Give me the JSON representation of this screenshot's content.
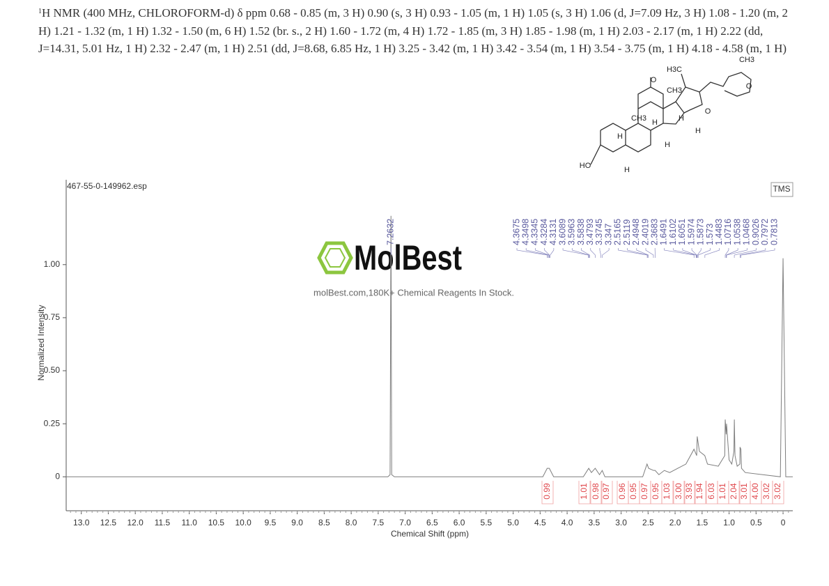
{
  "header": {
    "isotope": "1",
    "text": "H NMR (400 MHz, CHLOROFORM-d) δ ppm 0.68 - 0.85 (m, 3 H) 0.90 (s, 3 H) 0.93 - 1.05 (m, 1 H) 1.05 (s, 3 H) 1.06 (d, J=7.09 Hz, 3 H) 1.08 - 1.20 (m, 2 H) 1.21 - 1.32 (m, 1 H) 1.32 - 1.50 (m, 6 H) 1.52 (br. s., 2 H) 1.60 - 1.72 (m, 4 H) 1.72 - 1.85 (m, 3 H) 1.85 - 1.98 (m, 1 H) 2.03 - 2.17 (m, 1 H) 2.22 (dd, J=14.31, 5.01 Hz, 1 H) 2.32 - 2.47 (m, 1 H) 2.51 (dd, J=8.68, 6.85 Hz, 1 H) 3.25 - 3.42 (m, 1 H) 3.42 - 3.54 (m, 1 H) 3.54 - 3.75 (m, 1 H) 4.18 - 4.58 (m, 1 H)"
  },
  "structure": {
    "labels": [
      "H3C",
      "CH3",
      "O",
      "O",
      "CH3",
      "CH3",
      "H",
      "H",
      "O",
      "H",
      "H",
      "H",
      "HO",
      "H"
    ]
  },
  "watermark": {
    "brand": "MolBest",
    "tagline": "molBest.com,180K+ Chemical Reagents In Stock."
  },
  "chart_data": {
    "type": "line",
    "file_name": "467-55-0-149962.esp",
    "reference_label": "TMS",
    "x_label": "Chemical Shift (ppm)",
    "y_label": "Normalized Intensity",
    "color": "#7d7d7d",
    "x": [
      13.28,
      7.32,
      7.28,
      7.2632,
      7.25,
      7.2,
      4.45,
      4.37,
      4.33,
      4.25,
      3.7,
      3.6,
      3.55,
      3.48,
      3.4,
      3.35,
      3.3,
      2.6,
      2.52,
      2.49,
      2.4,
      2.37,
      2.3,
      2.2,
      2.1,
      1.95,
      1.8,
      1.65,
      1.6,
      1.59,
      1.55,
      1.45,
      1.4,
      1.2,
      1.08,
      1.0716,
      1.0538,
      1.0468,
      1.0,
      0.95,
      0.91,
      0.9026,
      0.89,
      0.85,
      0.8,
      0.7972,
      0.7813,
      0.77,
      0.7,
      0.05,
      0.0,
      -0.05,
      -0.18
    ],
    "values": [
      0,
      0,
      0.01,
      1.23,
      0.01,
      0,
      0,
      0.04,
      0.04,
      0,
      0,
      0.04,
      0.02,
      0.04,
      0.01,
      0.03,
      0,
      0,
      0.06,
      0.04,
      0.03,
      0.03,
      0.01,
      0.03,
      0.02,
      0.04,
      0.06,
      0.13,
      0.1,
      0.19,
      0.12,
      0.1,
      0.06,
      0.05,
      0.1,
      0.27,
      0.2,
      0.25,
      0.08,
      0.06,
      0.12,
      0.27,
      0.1,
      0.05,
      0.06,
      0.14,
      0.13,
      0.04,
      0.02,
      0,
      1.03,
      0,
      0
    ],
    "xlim": [
      13.28,
      -0.18
    ],
    "ylim": [
      -0.16,
      1.4
    ],
    "xticks": [
      {
        "value": 13,
        "label": "13.0"
      },
      12.5,
      {
        "value": 12,
        "label": "12.0"
      },
      11.5,
      {
        "value": 11,
        "label": "11.0"
      },
      10.5,
      {
        "value": 10,
        "label": "10.0"
      },
      9.5,
      {
        "value": 9,
        "label": "9.0"
      },
      8.5,
      {
        "value": 8,
        "label": "8.0"
      },
      7.5,
      {
        "value": 7,
        "label": "7.0"
      },
      6.5,
      {
        "value": 6,
        "label": "6.0"
      },
      5.5,
      {
        "value": 5,
        "label": "5.0"
      },
      4.5,
      {
        "value": 4,
        "label": "4.0"
      },
      3.5,
      {
        "value": 3,
        "label": "3.0"
      },
      2.5,
      {
        "value": 2,
        "label": "2.0"
      },
      1.5,
      {
        "value": 1,
        "label": "1.0"
      },
      0.5,
      0
    ],
    "yticks": [
      0,
      0.25,
      {
        "value": 0.5,
        "label": "0.50"
      },
      0.75,
      {
        "value": 1,
        "label": "1.00"
      }
    ],
    "solvent_peak_label": 7.2632,
    "peak_labels": [
      4.3675,
      4.3498,
      4.3345,
      4.3284,
      4.3131,
      3.6089,
      3.5963,
      3.5838,
      3.4793,
      3.3745,
      3.347,
      2.5165,
      2.5119,
      2.4948,
      2.4019,
      2.3683,
      1.6491,
      1.6102,
      1.6051,
      1.5974,
      1.5873,
      1.573,
      1.4483,
      1.0716,
      1.0538,
      1.0468,
      0.9026,
      0.7972,
      0.7813
    ],
    "integrals": [
      "0.99",
      "1.01",
      "0.98",
      "0.97",
      "0.96",
      "0.95",
      "0.97",
      "0.95",
      "1.03",
      "3.00",
      "3.93",
      "1.94",
      "6.03",
      "1.01",
      "2.04",
      "3.01",
      "4.00",
      "3.02",
      "3.02"
    ]
  }
}
